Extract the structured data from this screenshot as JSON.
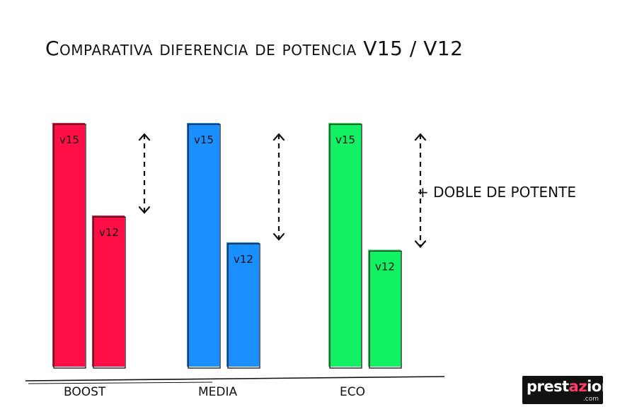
{
  "title": "Comparativa diferencia de potencia V15 / V12",
  "note": "+ DOBLE DE POTENTE",
  "logo": {
    "before": "prest",
    "highlight": "az",
    "after": "ion",
    "tld": ".com"
  },
  "chart_data": {
    "type": "bar",
    "title": "Comparativa diferencia de potencia V15 / V12",
    "categories": [
      "BOOST",
      "MEDIA",
      "ECO"
    ],
    "series": [
      {
        "name": "v15",
        "values": [
          100,
          100,
          100
        ]
      },
      {
        "name": "v12",
        "values": [
          62,
          51,
          48
        ]
      }
    ],
    "colors": {
      "BOOST": "#ff0f45",
      "MEDIA": "#1a8fff",
      "ECO": "#12f064"
    },
    "annotation": "+ DOBLE DE POTENTE",
    "grid": false
  }
}
